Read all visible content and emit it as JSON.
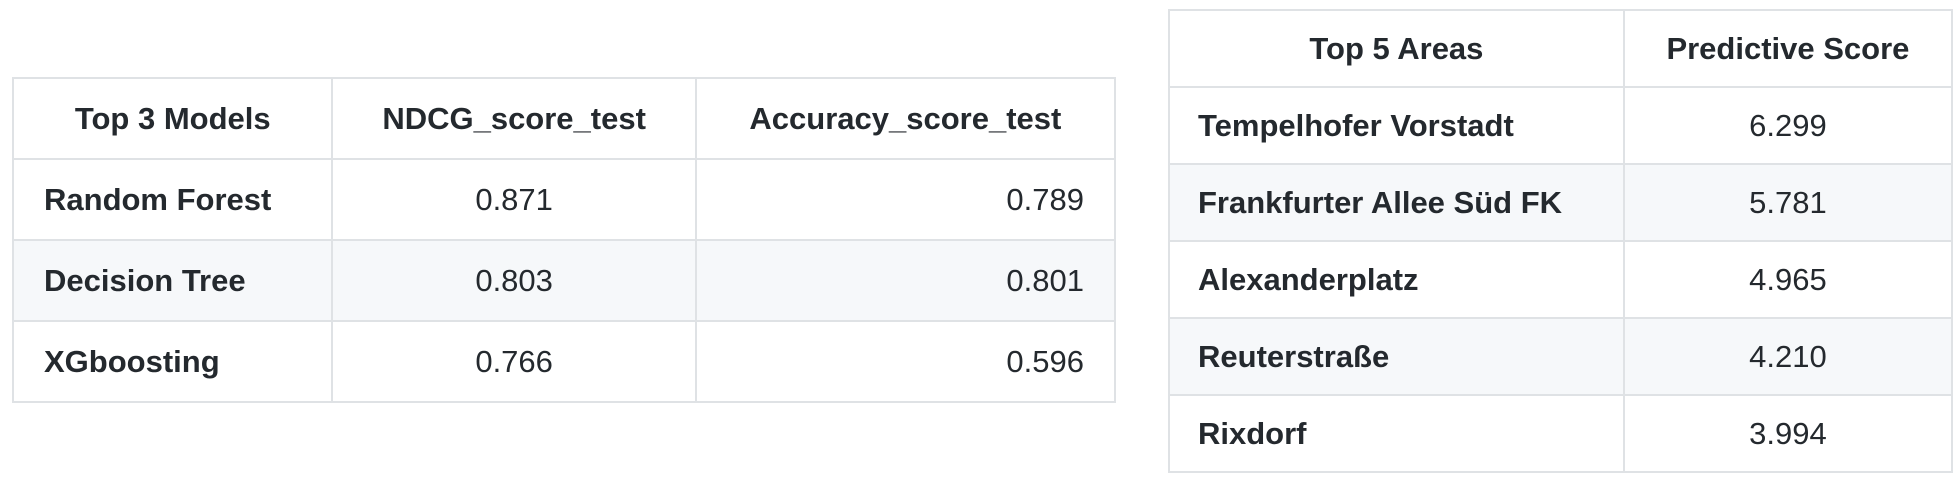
{
  "models_table": {
    "headers": [
      "Top 3 Models",
      "NDCG_score_test",
      "Accuracy_score_test"
    ],
    "rows": [
      {
        "model": "Random Forest",
        "ndcg": "0.871",
        "accuracy": "0.789"
      },
      {
        "model": "Decision Tree",
        "ndcg": "0.803",
        "accuracy": "0.801"
      },
      {
        "model": "XGboosting",
        "ndcg": "0.766",
        "accuracy": "0.596"
      }
    ]
  },
  "areas_table": {
    "headers": [
      "Top 5 Areas",
      "Predictive Score"
    ],
    "rows": [
      {
        "area": "Tempelhofer Vorstadt",
        "score": "6.299"
      },
      {
        "area": "Frankfurter Allee Süd FK",
        "score": "5.781"
      },
      {
        "area": "Alexanderplatz",
        "score": "4.965"
      },
      {
        "area": "Reuterstraße",
        "score": "4.210"
      },
      {
        "area": "Rixdorf",
        "score": "3.994"
      }
    ]
  },
  "colors": {
    "border": "#dfe2e5",
    "stripe": "#f6f8fa",
    "text": "#24292e"
  }
}
